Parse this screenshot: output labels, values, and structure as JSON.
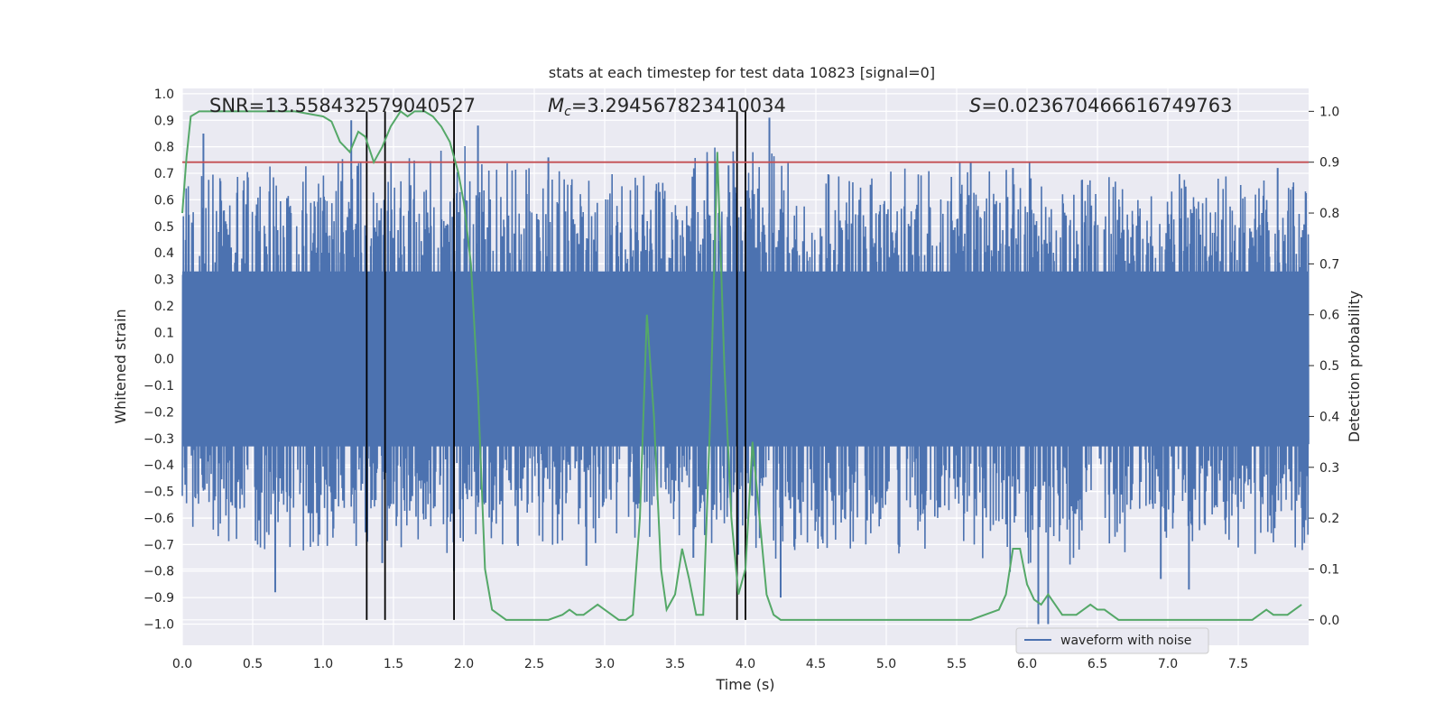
{
  "chart_data": {
    "type": "line",
    "title": "stats at each timestep for test data 10823 [signal=0]",
    "xlabel": "Time (s)",
    "ylabel_left": "Whitened strain",
    "ylabel_right": "Detection probability",
    "xlim": [
      0.0,
      8.0
    ],
    "ylim_left": [
      -1.08,
      1.02
    ],
    "ylim_right": [
      -0.05,
      1.045
    ],
    "x_ticks": [
      "0.0",
      "0.5",
      "1.0",
      "1.5",
      "2.0",
      "2.5",
      "3.0",
      "3.5",
      "4.0",
      "4.5",
      "5.0",
      "5.5",
      "6.0",
      "6.5",
      "7.0",
      "7.5"
    ],
    "y_left_ticks": [
      "1.0",
      "0.9",
      "0.8",
      "0.7",
      "0.6",
      "0.5",
      "0.4",
      "0.3",
      "0.2",
      "0.1",
      "0.0",
      "−0.1",
      "−0.2",
      "−0.3",
      "−0.4",
      "−0.5",
      "−0.6",
      "−0.7",
      "−0.8",
      "−0.9",
      "−1.0"
    ],
    "y_right_ticks": [
      "1.0",
      "0.9",
      "0.8",
      "0.7",
      "0.6",
      "0.5",
      "0.4",
      "0.3",
      "0.2",
      "0.1",
      "0.0"
    ],
    "grid": true,
    "legend": {
      "position": "lower-right",
      "entries": [
        "waveform with noise"
      ]
    },
    "annotations": {
      "snr": "SNR=13.558432579040527",
      "mc_symbol": "M",
      "mc_sub": "c",
      "mc_value": "=3.294567823410034",
      "s_symbol": "S",
      "s_value": "=0.023670466616749763"
    },
    "threshold_right": 0.9,
    "vertical_lines_x": [
      1.31,
      1.44,
      1.93,
      3.94,
      4.0
    ],
    "waveform": {
      "name": "waveform with noise",
      "color": "#4c72b0",
      "x_range": [
        0.0,
        8.0
      ],
      "core_amplitude": 0.33,
      "envelope_pos": [
        [
          0.0,
          0.58
        ],
        [
          0.5,
          0.6
        ],
        [
          1.0,
          0.65
        ],
        [
          1.5,
          0.62
        ],
        [
          2.0,
          0.68
        ],
        [
          2.5,
          0.6
        ],
        [
          3.0,
          0.58
        ],
        [
          3.5,
          0.62
        ],
        [
          4.0,
          0.7
        ],
        [
          4.5,
          0.58
        ],
        [
          5.0,
          0.6
        ],
        [
          5.5,
          0.65
        ],
        [
          6.0,
          0.62
        ],
        [
          6.5,
          0.6
        ],
        [
          7.0,
          0.58
        ],
        [
          7.5,
          0.6
        ],
        [
          8.0,
          0.55
        ]
      ],
      "envelope_neg": [
        [
          0.0,
          -0.55
        ],
        [
          0.5,
          -0.6
        ],
        [
          1.0,
          -0.62
        ],
        [
          1.5,
          -0.6
        ],
        [
          2.0,
          -0.62
        ],
        [
          2.5,
          -0.58
        ],
        [
          3.0,
          -0.6
        ],
        [
          3.5,
          -0.58
        ],
        [
          4.0,
          -0.65
        ],
        [
          4.5,
          -0.6
        ],
        [
          5.0,
          -0.62
        ],
        [
          5.5,
          -0.6
        ],
        [
          6.0,
          -0.7
        ],
        [
          6.5,
          -0.62
        ],
        [
          7.0,
          -0.6
        ],
        [
          7.5,
          -0.62
        ],
        [
          8.0,
          -0.6
        ]
      ],
      "spikes": [
        [
          0.15,
          0.85
        ],
        [
          0.66,
          -0.88
        ],
        [
          1.2,
          0.9
        ],
        [
          1.42,
          -0.77
        ],
        [
          1.93,
          -0.8
        ],
        [
          2.1,
          0.88
        ],
        [
          2.6,
          0.76
        ],
        [
          2.87,
          -0.78
        ],
        [
          3.63,
          -0.75
        ],
        [
          3.88,
          0.73
        ],
        [
          4.0,
          0.75
        ],
        [
          4.17,
          0.91
        ],
        [
          4.25,
          -0.9
        ],
        [
          5.6,
          0.74
        ],
        [
          5.9,
          0.72
        ],
        [
          6.08,
          -1.0
        ],
        [
          6.15,
          -1.0
        ],
        [
          6.95,
          -0.83
        ],
        [
          7.15,
          -0.87
        ],
        [
          7.78,
          0.72
        ]
      ]
    },
    "detection_probability": {
      "color": "#55a868",
      "x": [
        0.0,
        0.03,
        0.06,
        0.12,
        0.2,
        0.4,
        0.6,
        0.8,
        1.0,
        1.06,
        1.12,
        1.19,
        1.25,
        1.3,
        1.36,
        1.42,
        1.48,
        1.55,
        1.6,
        1.65,
        1.72,
        1.78,
        1.84,
        1.9,
        1.96,
        2.0,
        2.05,
        2.1,
        2.15,
        2.2,
        2.25,
        2.3,
        2.4,
        2.5,
        2.6,
        2.7,
        2.75,
        2.8,
        2.85,
        2.9,
        2.95,
        3.0,
        3.05,
        3.1,
        3.15,
        3.2,
        3.25,
        3.3,
        3.35,
        3.4,
        3.44,
        3.5,
        3.55,
        3.6,
        3.65,
        3.7,
        3.75,
        3.8,
        3.85,
        3.9,
        3.95,
        4.0,
        4.05,
        4.1,
        4.15,
        4.2,
        4.25,
        4.3,
        4.35,
        4.4,
        4.45,
        4.5,
        4.6,
        4.8,
        5.0,
        5.2,
        5.4,
        5.6,
        5.8,
        5.85,
        5.9,
        5.95,
        6.0,
        6.05,
        6.1,
        6.15,
        6.2,
        6.25,
        6.3,
        6.35,
        6.4,
        6.45,
        6.5,
        6.55,
        6.6,
        6.65,
        6.7,
        6.8,
        6.9,
        7.0,
        7.2,
        7.4,
        7.6,
        7.65,
        7.7,
        7.75,
        7.8,
        7.85,
        7.9,
        7.95
      ],
      "y": [
        0.8,
        0.91,
        0.99,
        1.0,
        1.0,
        1.0,
        1.0,
        1.0,
        0.99,
        0.98,
        0.94,
        0.92,
        0.96,
        0.95,
        0.9,
        0.93,
        0.97,
        1.0,
        0.99,
        1.0,
        1.0,
        0.99,
        0.97,
        0.94,
        0.88,
        0.82,
        0.7,
        0.45,
        0.1,
        0.02,
        0.01,
        0.0,
        0.0,
        0.0,
        0.0,
        0.01,
        0.02,
        0.01,
        0.01,
        0.02,
        0.03,
        0.02,
        0.01,
        0.0,
        0.0,
        0.01,
        0.2,
        0.6,
        0.4,
        0.1,
        0.02,
        0.05,
        0.14,
        0.08,
        0.01,
        0.01,
        0.4,
        0.92,
        0.5,
        0.2,
        0.05,
        0.1,
        0.35,
        0.2,
        0.05,
        0.01,
        0.0,
        0.0,
        0.0,
        0.0,
        0.0,
        0.0,
        0.0,
        0.0,
        0.0,
        0.0,
        0.0,
        0.0,
        0.02,
        0.05,
        0.14,
        0.14,
        0.07,
        0.04,
        0.03,
        0.05,
        0.03,
        0.01,
        0.01,
        0.01,
        0.02,
        0.03,
        0.02,
        0.02,
        0.01,
        0.0,
        0.0,
        0.0,
        0.0,
        0.0,
        0.0,
        0.0,
        0.0,
        0.01,
        0.02,
        0.01,
        0.01,
        0.01,
        0.02,
        0.03
      ]
    }
  }
}
